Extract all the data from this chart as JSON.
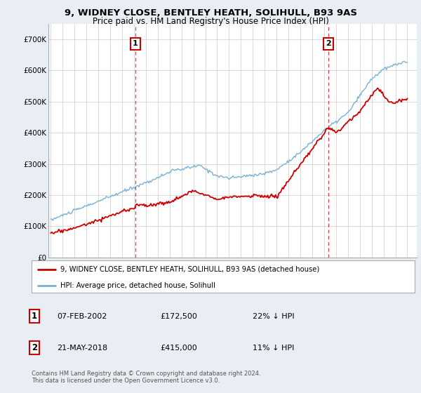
{
  "title_line1": "9, WIDNEY CLOSE, BENTLEY HEATH, SOLIHULL, B93 9AS",
  "title_line2": "Price paid vs. HM Land Registry's House Price Index (HPI)",
  "background_color": "#e8eef4",
  "plot_bg_color": "#ffffff",
  "grid_color": "#cccccc",
  "hpi_color": "#7ab0d8",
  "price_color": "#cc0000",
  "legend_label1": "9, WIDNEY CLOSE, BENTLEY HEATH, SOLIHULL, B93 9AS (detached house)",
  "legend_label2": "HPI: Average price, detached house, Solihull",
  "table_row1": [
    "1",
    "07-FEB-2002",
    "£172,500",
    "22% ↓ HPI"
  ],
  "table_row2": [
    "2",
    "21-MAY-2018",
    "£415,000",
    "11% ↓ HPI"
  ],
  "footnote": "Contains HM Land Registry data © Crown copyright and database right 2024.\nThis data is licensed under the Open Government Licence v3.0.",
  "ylim": [
    0,
    750000
  ],
  "yticks": [
    0,
    100000,
    200000,
    300000,
    400000,
    500000,
    600000,
    700000
  ],
  "ytick_labels": [
    "£0",
    "£100K",
    "£200K",
    "£300K",
    "£400K",
    "£500K",
    "£600K",
    "£700K"
  ],
  "xlim_start": 1994.8,
  "xlim_end": 2025.8,
  "sale1_year": 2002.1,
  "sale2_year": 2018.38,
  "sale1_num": "1",
  "sale2_num": "2"
}
